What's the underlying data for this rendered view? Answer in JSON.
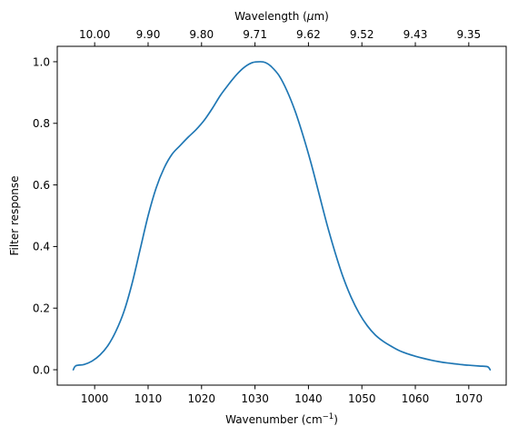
{
  "chart_data": {
    "type": "line",
    "title": "",
    "xlabel": "Wavenumber (cm",
    "xlabel_sup": "−1",
    "xlabel_suffix": ")",
    "ylabel": "Filter response",
    "top_xlabel_prefix": "Wavelength (",
    "top_xlabel_mu": "μ",
    "top_xlabel_suffix": "m)",
    "xlim": [
      993,
      1077
    ],
    "ylim": [
      -0.05,
      1.05
    ],
    "grid": false,
    "legend": "none",
    "xticks": [
      {
        "value": 1000,
        "label": "1000"
      },
      {
        "value": 1010,
        "label": "1010"
      },
      {
        "value": 1020,
        "label": "1020"
      },
      {
        "value": 1030,
        "label": "1030"
      },
      {
        "value": 1040,
        "label": "1040"
      },
      {
        "value": 1050,
        "label": "1050"
      },
      {
        "value": 1060,
        "label": "1060"
      },
      {
        "value": 1070,
        "label": "1070"
      }
    ],
    "yticks": [
      {
        "value": 0.0,
        "label": "0.0"
      },
      {
        "value": 0.2,
        "label": "0.2"
      },
      {
        "value": 0.4,
        "label": "0.4"
      },
      {
        "value": 0.6,
        "label": "0.6"
      },
      {
        "value": 0.8,
        "label": "0.8"
      },
      {
        "value": 1.0,
        "label": "1.0"
      }
    ],
    "top_xticks": [
      {
        "value": 1000,
        "label": "10.00"
      },
      {
        "value": 1010,
        "label": "9.90"
      },
      {
        "value": 1020,
        "label": "9.80"
      },
      {
        "value": 1030,
        "label": "9.71"
      },
      {
        "value": 1040,
        "label": "9.62"
      },
      {
        "value": 1050,
        "label": "9.52"
      },
      {
        "value": 1060,
        "label": "9.43"
      },
      {
        "value": 1070,
        "label": "9.35"
      }
    ],
    "series": [
      {
        "color": "#1f77b4",
        "x": [
          996.0,
          996.5,
          998.0,
          999.5,
          1001.0,
          1002.5,
          1004.0,
          1005.5,
          1007.0,
          1008.5,
          1010.0,
          1011.5,
          1013.0,
          1014.5,
          1016.0,
          1017.5,
          1019.0,
          1020.5,
          1022.0,
          1023.5,
          1025.0,
          1026.5,
          1028.0,
          1029.5,
          1031.0,
          1032.0,
          1033.0,
          1034.5,
          1036.0,
          1037.5,
          1039.0,
          1040.5,
          1042.0,
          1043.5,
          1045.0,
          1046.5,
          1048.0,
          1049.5,
          1051.0,
          1052.5,
          1054.0,
          1055.5,
          1057.0,
          1058.5,
          1060.0,
          1061.5,
          1063.0,
          1064.5,
          1066.0,
          1067.5,
          1069.0,
          1070.5,
          1072.0,
          1073.5,
          1074.0
        ],
        "y": [
          0.0,
          0.013,
          0.017,
          0.028,
          0.048,
          0.079,
          0.126,
          0.19,
          0.28,
          0.39,
          0.5,
          0.59,
          0.655,
          0.7,
          0.728,
          0.755,
          0.78,
          0.81,
          0.848,
          0.89,
          0.925,
          0.957,
          0.982,
          0.997,
          1.0,
          0.997,
          0.985,
          0.955,
          0.905,
          0.84,
          0.76,
          0.67,
          0.57,
          0.47,
          0.38,
          0.3,
          0.235,
          0.183,
          0.143,
          0.113,
          0.092,
          0.076,
          0.062,
          0.052,
          0.044,
          0.037,
          0.031,
          0.026,
          0.022,
          0.019,
          0.016,
          0.014,
          0.012,
          0.01,
          0.0
        ]
      }
    ]
  }
}
